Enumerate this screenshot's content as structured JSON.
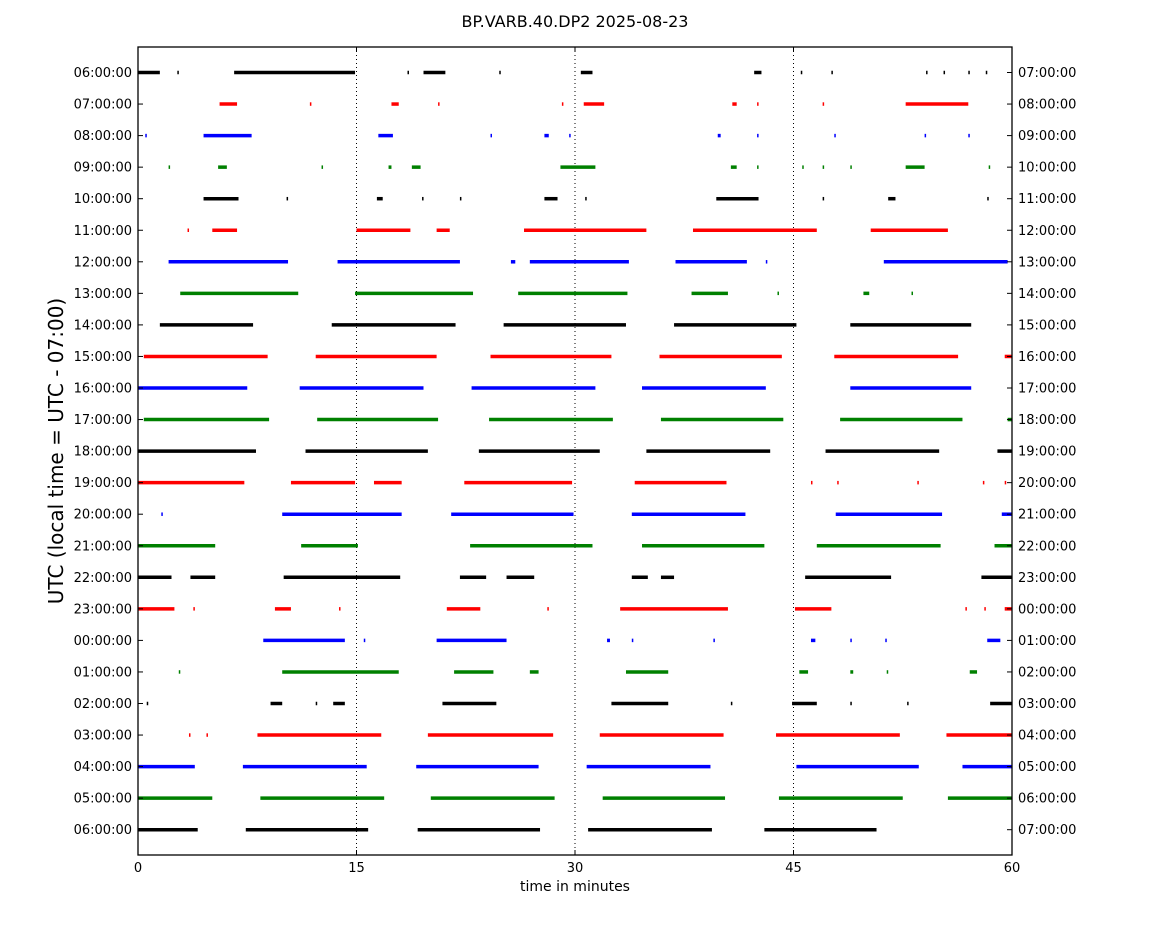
{
  "chart_data": {
    "type": "scatter",
    "title": "BP.VARB.40.DP2 2025-08-23",
    "xlabel": "time in minutes",
    "ylabel": "UTC (local time = UTC - 07:00)",
    "xlim": [
      0,
      60
    ],
    "x_ticks": [
      0,
      15,
      30,
      45,
      60
    ],
    "grid_x": [
      15,
      30,
      45
    ],
    "y_left_labels": [
      "06:00:00",
      "07:00:00",
      "08:00:00",
      "09:00:00",
      "10:00:00",
      "11:00:00",
      "12:00:00",
      "13:00:00",
      "14:00:00",
      "15:00:00",
      "16:00:00",
      "17:00:00",
      "18:00:00",
      "19:00:00",
      "20:00:00",
      "21:00:00",
      "22:00:00",
      "23:00:00",
      "00:00:00",
      "01:00:00",
      "02:00:00",
      "03:00:00",
      "04:00:00",
      "05:00:00",
      "06:00:00"
    ],
    "y_right_labels": [
      "07:00:00",
      "08:00:00",
      "09:00:00",
      "10:00:00",
      "11:00:00",
      "12:00:00",
      "13:00:00",
      "14:00:00",
      "15:00:00",
      "16:00:00",
      "17:00:00",
      "18:00:00",
      "19:00:00",
      "20:00:00",
      "21:00:00",
      "22:00:00",
      "23:00:00",
      "00:00:00",
      "01:00:00",
      "02:00:00",
      "03:00:00",
      "04:00:00",
      "05:00:00",
      "06:00:00",
      "07:00:00"
    ],
    "row_colors": [
      "#000000",
      "#ff0000",
      "#0000ff",
      "#008000"
    ],
    "rows": [
      [
        [
          0,
          1.5
        ],
        [
          2.7,
          2.8
        ],
        [
          6.6,
          14.9
        ],
        [
          18.5,
          18.6
        ],
        [
          19.6,
          21.1
        ],
        [
          24.8,
          24.9
        ],
        [
          30.4,
          31.2
        ],
        [
          42.3,
          42.8
        ],
        [
          45.5,
          45.6
        ],
        [
          47.6,
          47.7
        ],
        [
          54.1,
          54.2
        ],
        [
          55.3,
          55.4
        ],
        [
          57.0,
          57.1
        ],
        [
          58.2,
          58.3
        ]
      ],
      [
        [
          5.6,
          6.8
        ],
        [
          11.8,
          11.9
        ],
        [
          17.4,
          17.9
        ],
        [
          20.6,
          20.7
        ],
        [
          29.1,
          29.2
        ],
        [
          30.6,
          32.0
        ],
        [
          40.8,
          41.1
        ],
        [
          42.5,
          42.6
        ],
        [
          47.0,
          47.1
        ],
        [
          52.7,
          57.0
        ]
      ],
      [
        [
          0.5,
          0.6
        ],
        [
          4.5,
          7.8
        ],
        [
          16.5,
          17.5
        ],
        [
          24.2,
          24.3
        ],
        [
          27.9,
          28.2
        ],
        [
          29.6,
          29.7
        ],
        [
          39.8,
          40.0
        ],
        [
          42.5,
          42.6
        ],
        [
          47.8,
          47.9
        ],
        [
          54.0,
          54.1
        ],
        [
          57.0,
          57.1
        ]
      ],
      [
        [
          2.1,
          2.2
        ],
        [
          5.5,
          6.1
        ],
        [
          12.6,
          12.7
        ],
        [
          17.2,
          17.4
        ],
        [
          18.8,
          19.4
        ],
        [
          29.0,
          31.4
        ],
        [
          40.7,
          41.1
        ],
        [
          42.5,
          42.6
        ],
        [
          45.6,
          45.7
        ],
        [
          47.0,
          47.1
        ],
        [
          48.9,
          49.0
        ],
        [
          52.7,
          54.0
        ],
        [
          58.4,
          58.5
        ]
      ],
      [
        [
          4.5,
          6.9
        ],
        [
          10.2,
          10.3
        ],
        [
          16.4,
          16.8
        ],
        [
          19.5,
          19.6
        ],
        [
          22.1,
          22.2
        ],
        [
          27.9,
          28.8
        ],
        [
          30.7,
          30.8
        ],
        [
          39.7,
          42.6
        ],
        [
          47.0,
          47.1
        ],
        [
          51.5,
          52.0
        ],
        [
          58.3,
          58.4
        ]
      ],
      [
        [
          3.4,
          3.5
        ],
        [
          5.1,
          6.8
        ],
        [
          15.0,
          18.7
        ],
        [
          20.5,
          21.4
        ],
        [
          26.5,
          34.9
        ],
        [
          38.1,
          46.6
        ],
        [
          50.3,
          55.6
        ]
      ],
      [
        [
          2.1,
          10.3
        ],
        [
          13.7,
          22.1
        ],
        [
          25.6,
          25.9
        ],
        [
          26.9,
          33.7
        ],
        [
          36.9,
          41.8
        ],
        [
          43.1,
          43.2
        ],
        [
          51.2,
          59.7
        ]
      ],
      [
        [
          2.9,
          11.0
        ],
        [
          14.9,
          23.0
        ],
        [
          26.1,
          33.6
        ],
        [
          38.0,
          40.5
        ],
        [
          43.9,
          44.0
        ],
        [
          49.8,
          50.2
        ],
        [
          53.1,
          53.2
        ]
      ],
      [
        [
          1.5,
          7.9
        ],
        [
          13.3,
          21.8
        ],
        [
          25.1,
          33.5
        ],
        [
          36.8,
          45.2
        ],
        [
          48.9,
          57.2
        ]
      ],
      [
        [
          0.4,
          8.9
        ],
        [
          12.2,
          20.5
        ],
        [
          24.2,
          32.5
        ],
        [
          35.8,
          44.2
        ],
        [
          47.8,
          56.3
        ],
        [
          59.5,
          60.0
        ]
      ],
      [
        [
          0,
          7.5
        ],
        [
          11.1,
          19.6
        ],
        [
          22.9,
          31.4
        ],
        [
          34.6,
          43.1
        ],
        [
          48.9,
          57.2
        ]
      ],
      [
        [
          0.4,
          9.0
        ],
        [
          12.3,
          20.6
        ],
        [
          24.1,
          32.6
        ],
        [
          35.9,
          44.3
        ],
        [
          48.2,
          56.6
        ],
        [
          59.7,
          60.0
        ]
      ],
      [
        [
          0,
          8.1
        ],
        [
          11.5,
          19.9
        ],
        [
          23.4,
          31.7
        ],
        [
          34.9,
          43.4
        ],
        [
          47.2,
          55.0
        ],
        [
          59.0,
          60.0
        ]
      ],
      [
        [
          0,
          7.3
        ],
        [
          10.5,
          14.9
        ],
        [
          16.2,
          18.1
        ],
        [
          22.4,
          29.8
        ],
        [
          34.1,
          40.4
        ],
        [
          46.2,
          46.3
        ],
        [
          48.0,
          48.1
        ],
        [
          53.5,
          53.6
        ],
        [
          58.0,
          58.1
        ],
        [
          59.5,
          59.6
        ]
      ],
      [
        [
          1.6,
          1.7
        ],
        [
          9.9,
          18.1
        ],
        [
          21.5,
          29.9
        ],
        [
          33.9,
          41.7
        ],
        [
          47.9,
          55.2
        ],
        [
          59.3,
          60.0
        ]
      ],
      [
        [
          0,
          5.3
        ],
        [
          11.2,
          15.1
        ],
        [
          22.8,
          31.2
        ],
        [
          34.6,
          43.0
        ],
        [
          46.6,
          55.1
        ],
        [
          58.8,
          60.0
        ]
      ],
      [
        [
          0,
          2.3
        ],
        [
          3.6,
          5.3
        ],
        [
          10.0,
          18.0
        ],
        [
          22.1,
          23.9
        ],
        [
          25.3,
          27.2
        ],
        [
          33.9,
          35.0
        ],
        [
          35.9,
          36.8
        ],
        [
          45.8,
          51.7
        ],
        [
          57.9,
          60.0
        ]
      ],
      [
        [
          0,
          2.5
        ],
        [
          3.8,
          3.9
        ],
        [
          9.4,
          10.5
        ],
        [
          13.8,
          13.9
        ],
        [
          21.2,
          23.5
        ],
        [
          28.1,
          28.2
        ],
        [
          33.1,
          40.5
        ],
        [
          45.1,
          47.6
        ],
        [
          56.8,
          56.9
        ],
        [
          58.1,
          58.2
        ],
        [
          59.5,
          60.0
        ]
      ],
      [
        [
          8.6,
          14.2
        ],
        [
          15.5,
          15.6
        ],
        [
          20.5,
          25.3
        ],
        [
          32.2,
          32.4
        ],
        [
          33.9,
          34.0
        ],
        [
          39.5,
          39.6
        ],
        [
          46.2,
          46.5
        ],
        [
          48.9,
          49.0
        ],
        [
          51.3,
          51.4
        ],
        [
          58.3,
          59.2
        ]
      ],
      [
        [
          2.8,
          2.9
        ],
        [
          9.9,
          17.9
        ],
        [
          21.7,
          24.4
        ],
        [
          26.9,
          27.5
        ],
        [
          33.5,
          36.4
        ],
        [
          45.4,
          46.0
        ],
        [
          48.9,
          49.1
        ],
        [
          51.4,
          51.5
        ],
        [
          57.1,
          57.6
        ]
      ],
      [
        [
          0.6,
          0.7
        ],
        [
          9.1,
          9.9
        ],
        [
          12.2,
          12.3
        ],
        [
          13.4,
          14.2
        ],
        [
          20.9,
          24.6
        ],
        [
          32.5,
          36.4
        ],
        [
          40.7,
          40.8
        ],
        [
          44.9,
          46.6
        ],
        [
          48.9,
          49.0
        ],
        [
          52.8,
          52.9
        ],
        [
          58.5,
          60.0
        ]
      ],
      [
        [
          3.5,
          3.6
        ],
        [
          4.7,
          4.8
        ],
        [
          8.2,
          16.7
        ],
        [
          19.9,
          28.5
        ],
        [
          31.7,
          40.2
        ],
        [
          43.8,
          52.3
        ],
        [
          55.5,
          60.0
        ]
      ],
      [
        [
          0,
          3.9
        ],
        [
          7.2,
          15.7
        ],
        [
          19.1,
          27.5
        ],
        [
          30.8,
          39.3
        ],
        [
          45.2,
          53.6
        ],
        [
          56.6,
          60.0
        ]
      ],
      [
        [
          0,
          5.1
        ],
        [
          8.4,
          16.9
        ],
        [
          20.1,
          28.6
        ],
        [
          31.9,
          40.3
        ],
        [
          44.0,
          52.5
        ],
        [
          55.6,
          60.0
        ]
      ],
      [
        [
          0,
          4.1
        ],
        [
          7.4,
          15.8
        ],
        [
          19.2,
          27.6
        ],
        [
          30.9,
          39.4
        ],
        [
          43.0,
          50.7
        ]
      ]
    ]
  }
}
